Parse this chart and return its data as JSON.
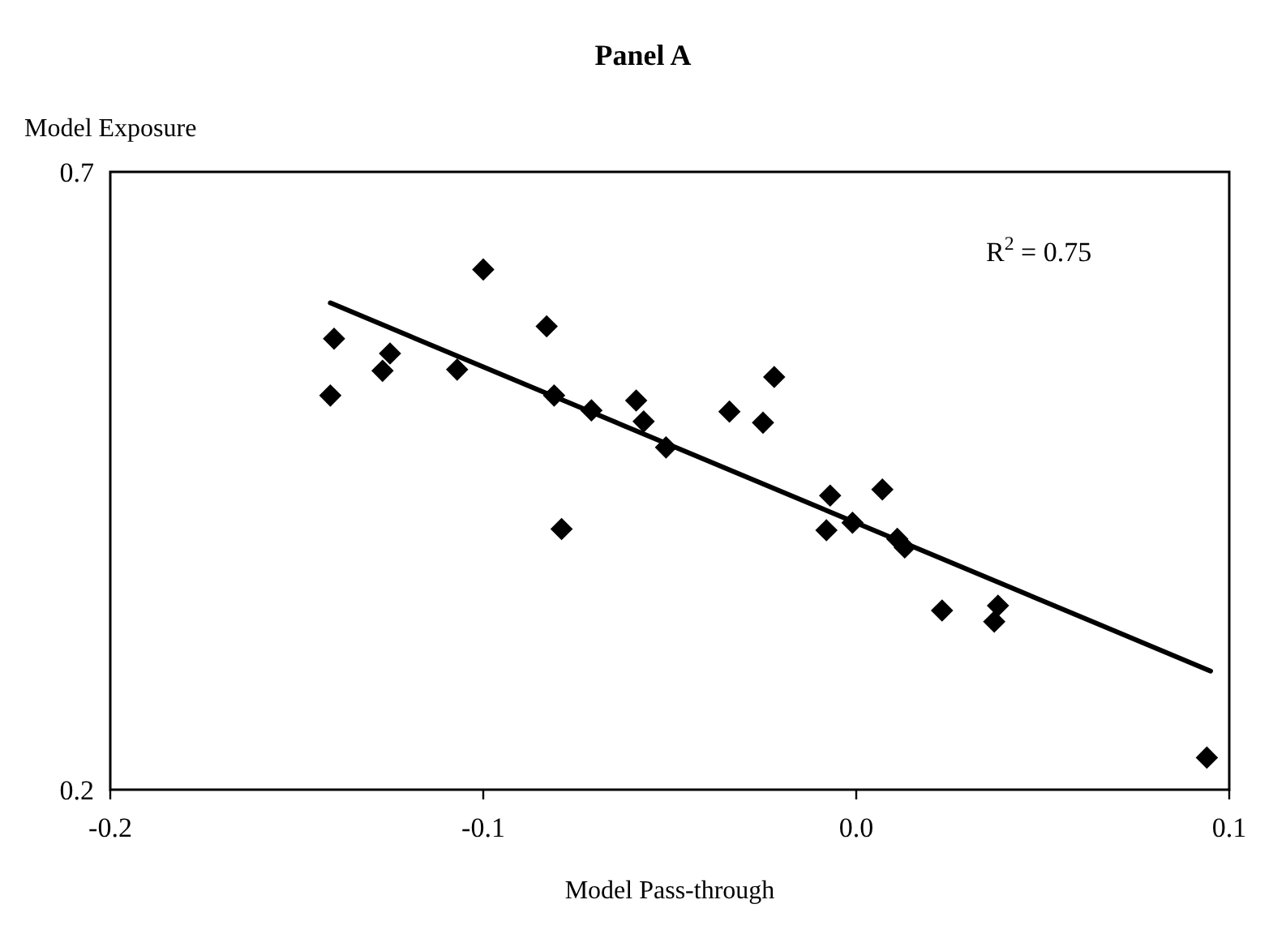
{
  "chart_data": {
    "type": "scatter",
    "title": "Panel A",
    "xlabel": "Model Pass-through",
    "ylabel": "Model Exposure",
    "xlim": [
      -0.2,
      0.1
    ],
    "xticks": [
      -0.2,
      -0.1,
      {
        "value": 0,
        "label": "0.0"
      },
      0.1
    ],
    "ylim": [
      0.2,
      0.7
    ],
    "yticks": [
      0.2,
      0.7
    ],
    "grid": false,
    "marker": "diamond",
    "annotations": [
      "R$^{2}$ = 0.75"
    ],
    "series": [
      {
        "color": "#000000",
        "x": [
          -0.141,
          -0.14,
          -0.125,
          -0.127,
          -0.107,
          -0.1,
          -0.083,
          -0.081,
          -0.079,
          -0.071,
          -0.059,
          -0.057,
          -0.051,
          -0.034,
          -0.025,
          -0.022,
          -0.008,
          -0.007,
          0.007,
          -0.001,
          0.011,
          0.013,
          0.023,
          0.038,
          0.037,
          0.094
        ],
        "values": [
          0.519,
          0.565,
          0.553,
          0.539,
          0.54,
          0.621,
          0.575,
          0.519,
          0.411,
          0.507,
          0.515,
          0.498,
          0.477,
          0.506,
          0.497,
          0.534,
          0.41,
          0.438,
          0.443,
          0.416,
          0.403,
          0.396,
          0.345,
          0.349,
          0.336,
          0.226
        ]
      },
      {
        "type": "line",
        "color": "#000000",
        "marker": "none",
        "x": [
          -0.141,
          0.095
        ],
        "values": [
          0.594,
          0.296
        ]
      }
    ]
  }
}
